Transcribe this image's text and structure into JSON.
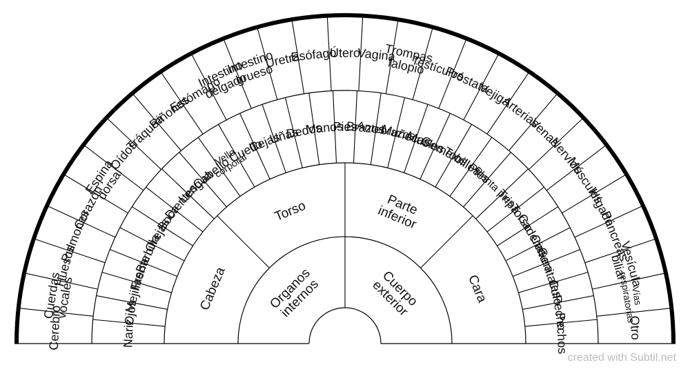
{
  "rings": [
    [
      "Organos\ninternos",
      "Cuerpo\nexterior"
    ],
    [
      "Cabeza",
      "Torso",
      "Parte\ninferior",
      "Cara"
    ],
    [
      "Nariz",
      "Ojos",
      "Mejillas",
      "Frente",
      "Barbilla",
      "Orejas",
      "Boca",
      "Dientes",
      "Lengua",
      "Cabello",
      "Vello\ncorporal",
      "Cuello",
      "Cejas",
      "Uñas",
      "Dedos",
      "Manos",
      "Pies",
      "Brazos",
      "Antebrazos",
      "Muñecas",
      "Muslos",
      "Gemelos",
      "Tobillos",
      "Pies",
      "Planta pies",
      "Tripa",
      "Torso",
      "Caderas",
      "Cintura",
      "Genitales",
      "Culo",
      "Pecho",
      "Pechos"
    ],
    [
      "Cerebro",
      "Cuerdas\nvocales",
      "Huesos",
      "Pulmones",
      "Corazón",
      "Espina\ndorsal",
      "Oídos",
      "Tráquea",
      "Riñones",
      "Estómago",
      "Intestino\ndelgado",
      "Intestino\ngrueso",
      "Uretra",
      "Esófago",
      "Útero",
      "Vagina",
      "Trompas\nfalopio",
      "Testículos",
      "Próstata",
      "Vejiga",
      "Arterias",
      "Venas",
      "Nervios",
      "Músculos",
      "Hígado",
      "Páncreas",
      "Vesícula\nbiliar",
      "Vías\nrespiratorias",
      "Otro"
    ]
  ],
  "credit": "created with Subtil.net"
}
